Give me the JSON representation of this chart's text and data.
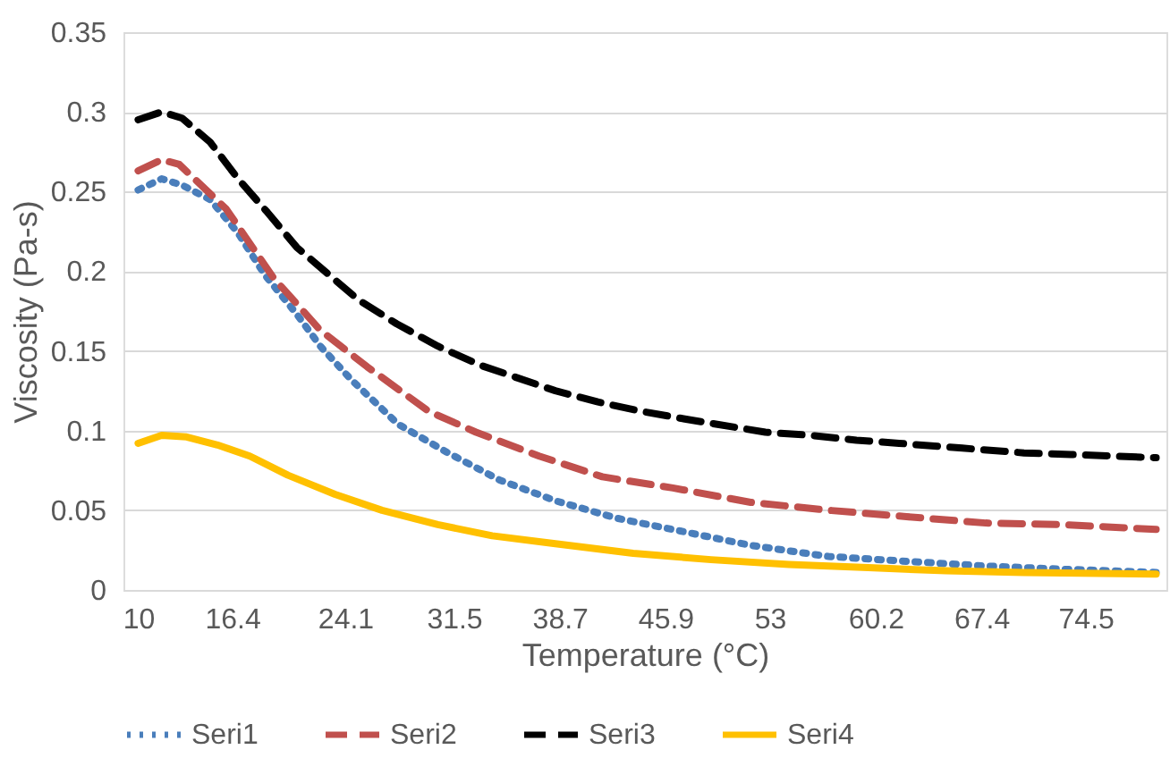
{
  "chart_data": {
    "type": "line",
    "xlabel": "Temperature (°C)",
    "ylabel": "Viscosity (Pa-s)",
    "xlim": [
      9,
      80
    ],
    "xticks": [
      10,
      16.4,
      24.1,
      31.5,
      38.7,
      45.9,
      53,
      60.2,
      67.4,
      74.5
    ],
    "ylim": [
      0,
      0.35
    ],
    "yticks": [
      0,
      0.05,
      0.1,
      0.15,
      0.2,
      0.25,
      0.3,
      0.35
    ],
    "grid": "y",
    "legend": "bottom",
    "marker": "none",
    "series": [
      {
        "name": "Seri1",
        "color": "#4a7ebb",
        "line_style": "dotted",
        "x": [
          10,
          11.6,
          13.0,
          14.9,
          16.8,
          18.6,
          20.8,
          22.4,
          24.5,
          27.7,
          30.9,
          34.6,
          38.4,
          42.6,
          46.9,
          51.7,
          57.0,
          62.3,
          67.7,
          73.0,
          79.3
        ],
        "values": [
          0.251,
          0.258,
          0.254,
          0.245,
          0.224,
          0.198,
          0.173,
          0.153,
          0.132,
          0.104,
          0.087,
          0.069,
          0.056,
          0.045,
          0.037,
          0.028,
          0.021,
          0.018,
          0.015,
          0.013,
          0.011
        ]
      },
      {
        "name": "Seri2",
        "color": "#c0504d",
        "line_style": "dashed",
        "x": [
          10,
          11.6,
          12.8,
          16.0,
          19.2,
          22.4,
          25.6,
          29.8,
          33.0,
          37.3,
          41.6,
          46.4,
          51.7,
          57.0,
          62.3,
          67.7,
          73.0,
          79.3
        ],
        "values": [
          0.263,
          0.27,
          0.267,
          0.239,
          0.196,
          0.163,
          0.14,
          0.112,
          0.099,
          0.084,
          0.071,
          0.064,
          0.055,
          0.05,
          0.046,
          0.042,
          0.041,
          0.038
        ]
      },
      {
        "name": "Seri3",
        "color": "#000000",
        "line_style": "dashed",
        "x": [
          10,
          11.6,
          13.0,
          14.9,
          16.8,
          18.8,
          20.8,
          25.0,
          27.6,
          30.4,
          33.3,
          38.4,
          41.3,
          44.3,
          47.4,
          52.7,
          55.8,
          58.9,
          61.8,
          66.1,
          70.3,
          73.5,
          79.3
        ],
        "values": [
          0.295,
          0.3,
          0.296,
          0.281,
          0.258,
          0.237,
          0.215,
          0.182,
          0.167,
          0.153,
          0.141,
          0.125,
          0.118,
          0.112,
          0.107,
          0.099,
          0.097,
          0.094,
          0.092,
          0.089,
          0.086,
          0.085,
          0.083
        ]
      },
      {
        "name": "Seri4",
        "color": "#ffc000",
        "line_style": "solid",
        "x": [
          10,
          11.6,
          13.3,
          15.4,
          17.6,
          20.2,
          23.4,
          26.6,
          30.4,
          34.1,
          38.4,
          43.7,
          49.0,
          54.3,
          59.7,
          65.0,
          70.3,
          79.3
        ],
        "values": [
          0.092,
          0.097,
          0.096,
          0.091,
          0.084,
          0.072,
          0.06,
          0.05,
          0.041,
          0.034,
          0.029,
          0.023,
          0.019,
          0.016,
          0.014,
          0.012,
          0.011,
          0.01
        ]
      }
    ]
  }
}
